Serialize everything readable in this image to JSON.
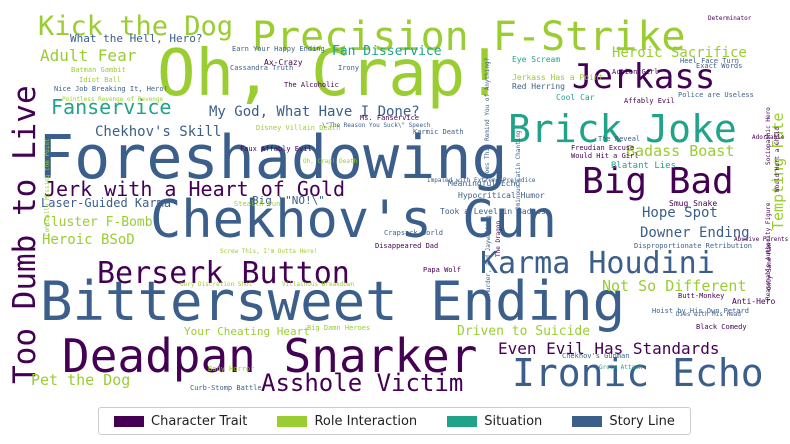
{
  "chart_data": {
    "type": "wordcloud",
    "categories": [
      {
        "name": "Character Trait",
        "color": "#440154"
      },
      {
        "name": "Role Interaction",
        "color": "#9ACD32"
      },
      {
        "name": "Situation",
        "color": "#21A38A"
      },
      {
        "name": "Story Line",
        "color": "#3B5F8A"
      }
    ],
    "words": [
      {
        "text": "Foreshadowing",
        "category": "Story Line",
        "weight": 100
      },
      {
        "text": "Chekhov's Gun",
        "category": "Story Line",
        "weight": 96
      },
      {
        "text": "Bittersweet Ending",
        "category": "Story Line",
        "weight": 94
      },
      {
        "text": "Oh, Crap!",
        "category": "Role Interaction",
        "weight": 90
      },
      {
        "text": "Deadpan Snarker",
        "category": "Character Trait",
        "weight": 82
      },
      {
        "text": "Too Dumb to Live",
        "category": "Character Trait",
        "weight": 72
      },
      {
        "text": "Precision F-Strike",
        "category": "Role Interaction",
        "weight": 66
      },
      {
        "text": "Brick Joke",
        "category": "Situation",
        "weight": 62
      },
      {
        "text": "Ironic Echo",
        "category": "Story Line",
        "weight": 62
      },
      {
        "text": "Berserk Button",
        "category": "Character Trait",
        "weight": 60
      },
      {
        "text": "Big Bad",
        "category": "Character Trait",
        "weight": 58
      },
      {
        "text": "Karma Houdini",
        "category": "Story Line",
        "weight": 58
      },
      {
        "text": "Jerkass",
        "category": "Character Trait",
        "weight": 56
      },
      {
        "text": "Kick the Dog",
        "category": "Role Interaction",
        "weight": 50
      },
      {
        "text": "Asshole Victim",
        "category": "Character Trait",
        "weight": 44
      },
      {
        "text": "Jerk with a Heart of Gold",
        "category": "Character Trait",
        "weight": 42
      },
      {
        "text": "Fanservice",
        "category": "Situation",
        "weight": 38
      },
      {
        "text": "Tempting Fate",
        "category": "Role Interaction",
        "weight": 34
      },
      {
        "text": "Even Evil Has Standards",
        "category": "Character Trait",
        "weight": 32
      },
      {
        "text": "Adult Fear",
        "category": "Role Interaction",
        "weight": 30
      },
      {
        "text": "My God, What Have I Done?",
        "category": "Story Line",
        "weight": 30
      },
      {
        "text": "Heroic Sacrifice",
        "category": "Role Interaction",
        "weight": 30
      },
      {
        "text": "Pet the Dog",
        "category": "Role Interaction",
        "weight": 30
      },
      {
        "text": "Badass Boast",
        "category": "Role Interaction",
        "weight": 28
      },
      {
        "text": "Not So Different",
        "category": "Role Interaction",
        "weight": 28
      },
      {
        "text": "Hope Spot",
        "category": "Story Line",
        "weight": 28
      },
      {
        "text": "Downer Ending",
        "category": "Story Line",
        "weight": 26
      },
      {
        "text": "Chekhov's Skill",
        "category": "Story Line",
        "weight": 26
      },
      {
        "text": "Driven to Suicide",
        "category": "Role Interaction",
        "weight": 24
      },
      {
        "text": "Heroic BSoD",
        "category": "Role Interaction",
        "weight": 24
      },
      {
        "text": "Fan Disservice",
        "category": "Situation",
        "weight": 22
      },
      {
        "text": "Cluster F-Bomb",
        "category": "Role Interaction",
        "weight": 22
      },
      {
        "text": "Laser-Guided Karma",
        "category": "Story Line",
        "weight": 22
      },
      {
        "text": "What the Hell, Hero?",
        "category": "Story Line",
        "weight": 20
      },
      {
        "text": "Your Cheating Heart",
        "category": "Role Interaction",
        "weight": 18
      },
      {
        "text": "Big \\\"NO!\\\"",
        "category": "Story Line",
        "weight": 18
      },
      {
        "text": "Blatant Lies",
        "category": "Situation",
        "weight": 15
      },
      {
        "text": "Anti-Hero",
        "category": "Character Trait",
        "weight": 14
      },
      {
        "text": "Smug Snake",
        "category": "Character Trait",
        "weight": 14
      },
      {
        "text": "Jerkass Has a Point",
        "category": "Role Interaction",
        "weight": 13
      },
      {
        "text": "Eye Scream",
        "category": "Situation",
        "weight": 13
      },
      {
        "text": "Ax-Crazy",
        "category": "Character Trait",
        "weight": 13
      },
      {
        "text": "Red Herring",
        "category": "Story Line",
        "weight": 13
      },
      {
        "text": "Cool Car",
        "category": "Situation",
        "weight": 13
      },
      {
        "text": "Meaningful Echo",
        "category": "Story Line",
        "weight": 13
      },
      {
        "text": "Hypocritical Humor",
        "category": "Story Line",
        "weight": 13
      },
      {
        "text": "Took a Level in Badass",
        "category": "Story Line",
        "weight": 13
      },
      {
        "text": "Exact Words",
        "category": "Story Line",
        "weight": 12
      },
      {
        "text": "Black Comedy",
        "category": "Character Trait",
        "weight": 12
      },
      {
        "text": "Disproportionate Retribution",
        "category": "Story Line",
        "weight": 12
      },
      {
        "text": "Earn Your Happy Ending",
        "category": "Story Line",
        "weight": 11
      },
      {
        "text": "Nice Job Breaking It, Hero!",
        "category": "Story Line",
        "weight": 11
      },
      {
        "text": "The Alcoholic",
        "category": "Character Trait",
        "weight": 10
      },
      {
        "text": "Faux Affably Evil",
        "category": "Character Trait",
        "weight": 10
      },
      {
        "text": "Affably Evil",
        "category": "Character Trait",
        "weight": 10
      },
      {
        "text": "Action Girl",
        "category": "Character Trait",
        "weight": 10
      },
      {
        "text": "Police are Useless",
        "category": "Story Line",
        "weight": 10
      },
      {
        "text": "Heel Face Turn",
        "category": "Story Line",
        "weight": 10
      },
      {
        "text": "The Reveal",
        "category": "Story Line",
        "weight": 10
      },
      {
        "text": "Freudian Excuse",
        "category": "Character Trait",
        "weight": 10
      },
      {
        "text": "Would Hit a Girl",
        "category": "Character Trait",
        "weight": 10
      },
      {
        "text": "Irony",
        "category": "Story Line",
        "weight": 10
      },
      {
        "text": "Batman Gambit",
        "category": "Role Interaction",
        "weight": 10
      },
      {
        "text": "Idiot Ball",
        "category": "Role Interaction",
        "weight": 10
      },
      {
        "text": "Karmic Death",
        "category": "Story Line",
        "weight": 10
      },
      {
        "text": "Ms. Fanservice",
        "category": "Character Trait",
        "weight": 10
      },
      {
        "text": "Cassandra Truth",
        "category": "Story Line",
        "weight": 10
      },
      {
        "text": "Disney Villain Death",
        "category": "Role Interaction",
        "weight": 9
      },
      {
        "text": "Stealth Pun",
        "category": "Role Interaction",
        "weight": 9
      },
      {
        "text": "Crapsack World",
        "category": "Story Line",
        "weight": 9
      },
      {
        "text": "Disappeared Dad",
        "category": "Character Trait",
        "weight": 9
      },
      {
        "text": "Papa Wolf",
        "category": "Character Trait",
        "weight": 9
      },
      {
        "text": "Big Damn Heroes",
        "category": "Role Interaction",
        "weight": 9
      },
      {
        "text": "Curb-Stomp Battle",
        "category": "Story Line",
        "weight": 9
      },
      {
        "text": "Body Horror",
        "category": "Role Interaction",
        "weight": 9
      },
      {
        "text": "Chekhov's Gunman",
        "category": "Story Line",
        "weight": 9
      },
      {
        "text": "Butt-Monkey",
        "category": "Character Trait",
        "weight": 9
      },
      {
        "text": "Hoist by His Own Petard",
        "category": "Story Line",
        "weight": 9
      },
      {
        "text": "Abusive Parents",
        "category": "Character Trait",
        "weight": 8
      },
      {
        "text": "Adorkable",
        "category": "Character Trait",
        "weight": 8
      },
      {
        "text": "Determinator",
        "category": "Character Trait",
        "weight": 8
      },
      {
        "text": "Villainous Breakdown",
        "category": "Role Interaction",
        "weight": 8
      },
      {
        "text": "Gory Discretion Shot",
        "category": "Role Interaction",
        "weight": 8
      },
      {
        "text": "Screw This, I'm Outta Here!",
        "category": "Role Interaction",
        "weight": 8
      },
      {
        "text": "Oh, Crap! Death",
        "category": "Role Interaction",
        "weight": 8
      },
      {
        "text": "\\\"The Reason You Suck\\\" Speech",
        "category": "Story Line",
        "weight": 8
      },
      {
        "text": "Impaled with Extreme Prejudice",
        "category": "Story Line",
        "weight": 8
      },
      {
        "text": "Dies with His Head",
        "category": "Story Line",
        "weight": 8
      },
      {
        "text": "Sociopathic Hero",
        "category": "Character Trait",
        "weight": 8
      },
      {
        "text": "Would Hurt a Child",
        "category": "Character Trait",
        "weight": 8
      },
      {
        "text": "Only Sane Man",
        "category": "Character Trait",
        "weight": 8
      },
      {
        "text": "Comically Missing the Point",
        "category": "Role Interaction",
        "weight": 8
      },
      {
        "text": "Does This Remind You of Anything?",
        "category": "Story Line",
        "weight": 8
      },
      {
        "text": "Ominous Latin Chanting",
        "category": "Story Line",
        "weight": 8
      },
      {
        "text": "Arson, Murder, and Jaywalking",
        "category": "Story Line",
        "weight": 8
      },
      {
        "text": "Pointless Revenge of Revenge",
        "category": "Role Interaction",
        "weight": 8
      },
      {
        "text": "The Dragon",
        "category": "Character Trait",
        "weight": 8
      },
      {
        "text": "Groin Attack",
        "category": "Situation",
        "weight": 8
      },
      {
        "text": "Reasonable Authority Figure",
        "category": "Character Trait",
        "weight": 8
      }
    ]
  }
}
